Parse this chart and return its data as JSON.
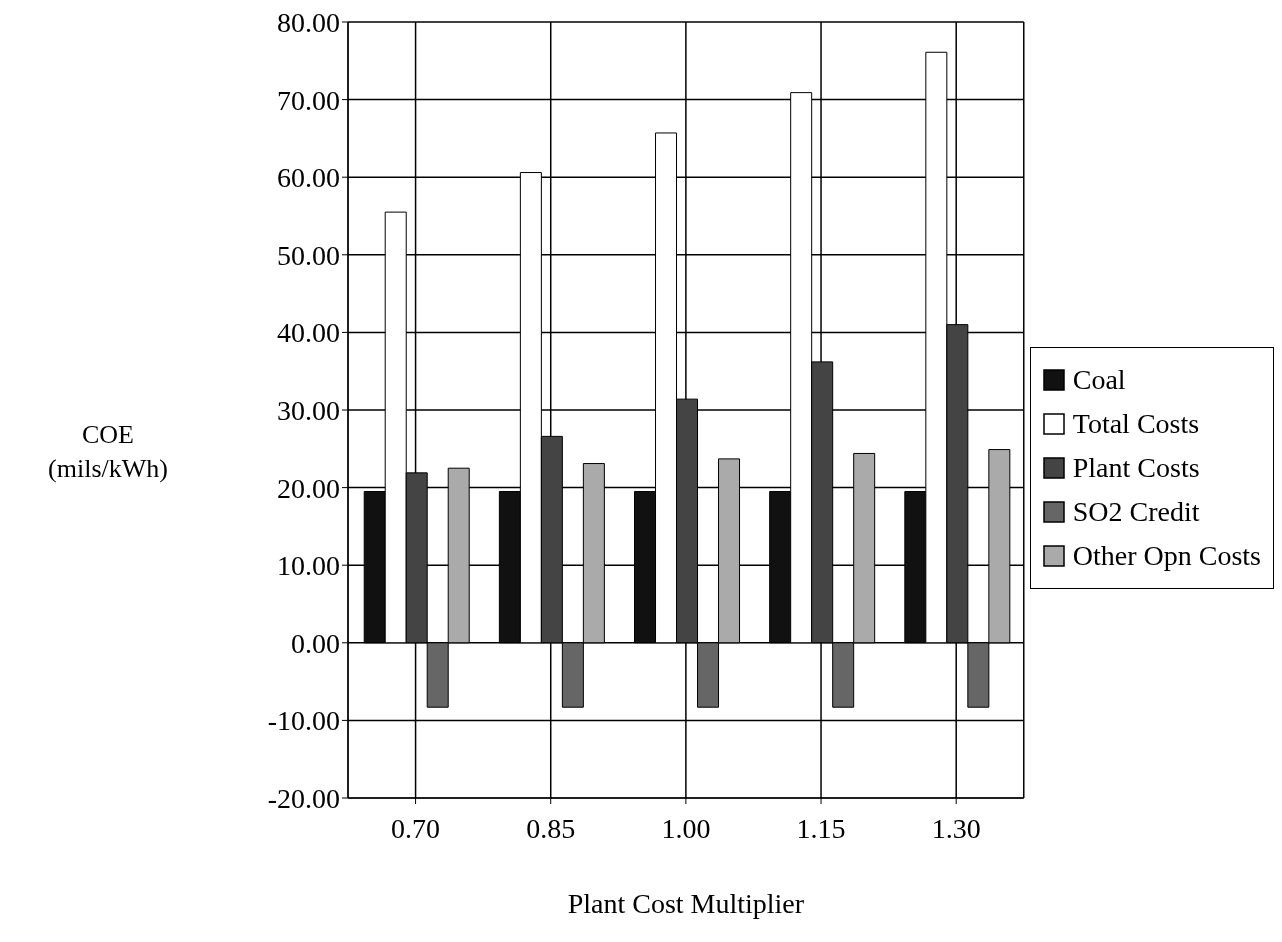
{
  "chart_data": {
    "type": "bar",
    "xlabel": "Plant Cost Multiplier",
    "ylabel": "COE\n(mils/kWh)",
    "categories": [
      "0.70",
      "0.85",
      "1.00",
      "1.15",
      "1.30"
    ],
    "series": [
      {
        "name": "Coal",
        "color": "#111111",
        "values": [
          19.5,
          19.5,
          19.5,
          19.5,
          19.5
        ]
      },
      {
        "name": "Total Costs",
        "color": "#ffffff",
        "values": [
          55.5,
          60.6,
          65.7,
          70.9,
          76.1
        ]
      },
      {
        "name": "Plant Costs",
        "color": "#444444",
        "values": [
          21.9,
          26.6,
          31.4,
          36.2,
          41.0
        ]
      },
      {
        "name": "SO2 Credit",
        "color": "#666666",
        "values": [
          -8.3,
          -8.3,
          -8.3,
          -8.3,
          -8.3
        ]
      },
      {
        "name": "Other Opn Costs",
        "color": "#aaaaaa",
        "values": [
          22.5,
          23.1,
          23.7,
          24.4,
          24.9
        ]
      }
    ],
    "ylim": [
      -20,
      80
    ],
    "yticks": [
      {
        "value": -20,
        "label": "-20.00"
      },
      {
        "value": -10,
        "label": "-10.00"
      },
      {
        "value": 0,
        "label": "0.00"
      },
      {
        "value": 10,
        "label": "10.00"
      },
      {
        "value": 20,
        "label": "20.00"
      },
      {
        "value": 30,
        "label": "30.00"
      },
      {
        "value": 40,
        "label": "40.00"
      },
      {
        "value": 50,
        "label": "50.00"
      },
      {
        "value": 60,
        "label": "60.00"
      },
      {
        "value": 70,
        "label": "70.00"
      },
      {
        "value": 80,
        "label": "80.00"
      }
    ],
    "grid": true,
    "legend": "right"
  }
}
